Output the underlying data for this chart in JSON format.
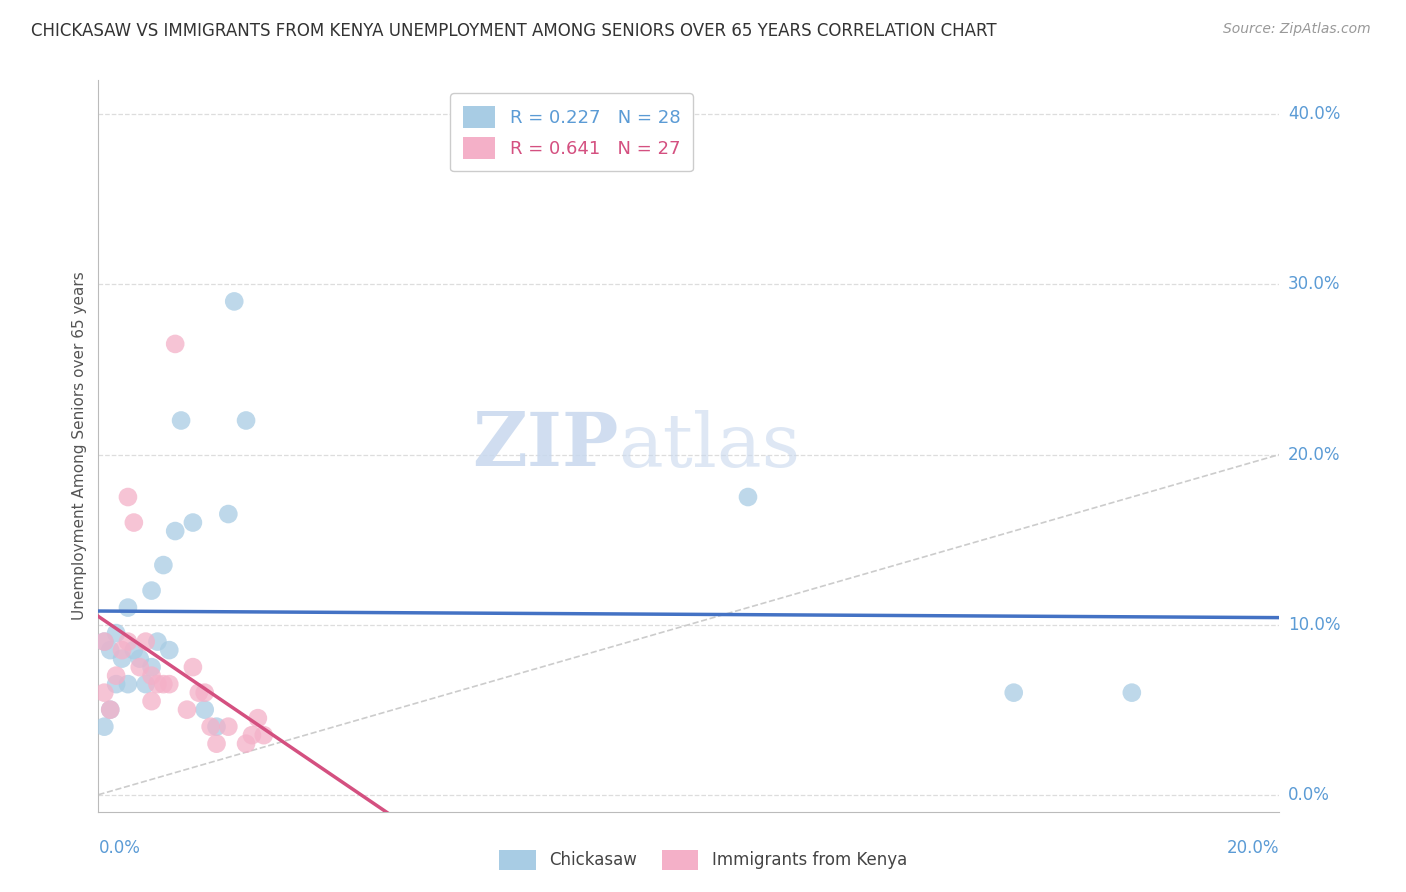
{
  "title": "CHICKASAW VS IMMIGRANTS FROM KENYA UNEMPLOYMENT AMONG SENIORS OVER 65 YEARS CORRELATION CHART",
  "source": "Source: ZipAtlas.com",
  "ylabel": "Unemployment Among Seniors over 65 years",
  "legend_label1": "Chickasaw",
  "legend_label2": "Immigrants from Kenya",
  "R1": 0.227,
  "N1": 28,
  "R2": 0.641,
  "N2": 27,
  "color_blue": "#a8cce4",
  "color_pink": "#f4b0c8",
  "color_blue_line": "#4472c4",
  "color_pink_line": "#d45080",
  "color_diag": "#cccccc",
  "color_grid": "#dddddd",
  "color_axis_label": "#5b9bd5",
  "chickasaw_x": [
    0.001,
    0.001,
    0.002,
    0.002,
    0.003,
    0.003,
    0.004,
    0.005,
    0.005,
    0.006,
    0.007,
    0.008,
    0.009,
    0.009,
    0.01,
    0.011,
    0.012,
    0.013,
    0.014,
    0.016,
    0.018,
    0.02,
    0.022,
    0.023,
    0.025,
    0.11,
    0.155,
    0.175
  ],
  "chickasaw_y": [
    0.04,
    0.09,
    0.05,
    0.085,
    0.065,
    0.095,
    0.08,
    0.11,
    0.065,
    0.085,
    0.08,
    0.065,
    0.075,
    0.12,
    0.09,
    0.135,
    0.085,
    0.155,
    0.22,
    0.16,
    0.05,
    0.04,
    0.165,
    0.29,
    0.22,
    0.175,
    0.06,
    0.06
  ],
  "kenya_x": [
    0.001,
    0.001,
    0.002,
    0.003,
    0.004,
    0.005,
    0.005,
    0.006,
    0.007,
    0.008,
    0.009,
    0.009,
    0.01,
    0.011,
    0.012,
    0.013,
    0.015,
    0.016,
    0.017,
    0.018,
    0.019,
    0.02,
    0.022,
    0.025,
    0.026,
    0.027,
    0.028
  ],
  "kenya_y": [
    0.06,
    0.09,
    0.05,
    0.07,
    0.085,
    0.09,
    0.175,
    0.16,
    0.075,
    0.09,
    0.055,
    0.07,
    0.065,
    0.065,
    0.065,
    0.265,
    0.05,
    0.075,
    0.06,
    0.06,
    0.04,
    0.03,
    0.04,
    0.03,
    0.035,
    0.045,
    0.035
  ],
  "xmin": 0.0,
  "xmax": 0.2,
  "ymin": 0.0,
  "ymax": 0.42,
  "ytick_vals": [
    0.0,
    0.1,
    0.2,
    0.3,
    0.4
  ],
  "ytick_labels": [
    "0.0%",
    "10.0%",
    "20.0%",
    "30.0%",
    "40.0%"
  ]
}
